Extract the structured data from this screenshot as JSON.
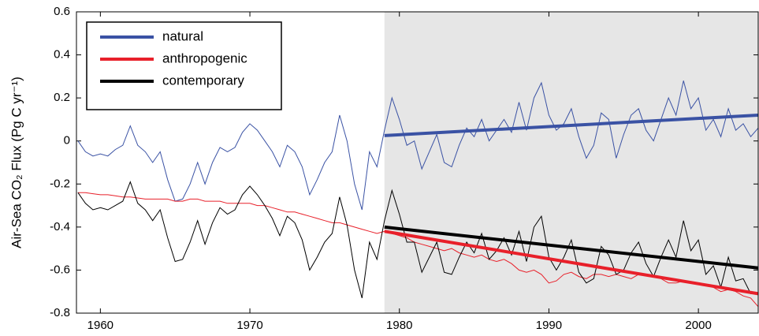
{
  "chart_data": {
    "type": "line",
    "y_label": "Air-Sea CO₂ Flux (Pg C yr⁻¹)",
    "xlim": [
      1958.4,
      2004
    ],
    "ylim": [
      -0.8,
      0.6
    ],
    "xticks": [
      1960,
      1970,
      1980,
      1990,
      2000
    ],
    "yticks": [
      -0.8,
      -0.6,
      -0.4,
      -0.2,
      0,
      0.2,
      0.4,
      0.6
    ],
    "shade_x": [
      1979,
      2004
    ],
    "legend": "upper left",
    "x": [
      1958.5,
      1959,
      1959.5,
      1960,
      1960.5,
      1961,
      1961.5,
      1962,
      1962.5,
      1963,
      1963.5,
      1964,
      1964.5,
      1965,
      1965.5,
      1966,
      1966.5,
      1967,
      1967.5,
      1968,
      1968.5,
      1969,
      1969.5,
      1970,
      1970.5,
      1971,
      1971.5,
      1972,
      1972.5,
      1973,
      1973.5,
      1974,
      1974.5,
      1975,
      1975.5,
      1976,
      1976.5,
      1977,
      1977.5,
      1978,
      1978.5,
      1979,
      1979.5,
      1980,
      1980.5,
      1981,
      1981.5,
      1982,
      1982.5,
      1983,
      1983.5,
      1984,
      1984.5,
      1985,
      1985.5,
      1986,
      1986.5,
      1987,
      1987.5,
      1988,
      1988.5,
      1989,
      1989.5,
      1990,
      1990.5,
      1991,
      1991.5,
      1992,
      1992.5,
      1993,
      1993.5,
      1994,
      1994.5,
      1995,
      1995.5,
      1996,
      1996.5,
      1997,
      1997.5,
      1998,
      1998.5,
      1999,
      1999.5,
      2000,
      2000.5,
      2001,
      2001.5,
      2002,
      2002.5,
      2003,
      2003.5,
      2004
    ],
    "series": [
      {
        "name": "natural",
        "color": "#3a52a4",
        "values": [
          0.0,
          -0.05,
          -0.07,
          -0.06,
          -0.07,
          -0.04,
          -0.02,
          0.07,
          -0.02,
          -0.05,
          -0.1,
          -0.05,
          -0.18,
          -0.28,
          -0.27,
          -0.2,
          -0.1,
          -0.2,
          -0.1,
          -0.03,
          -0.05,
          -0.03,
          0.04,
          0.08,
          0.05,
          0.0,
          -0.05,
          -0.12,
          -0.02,
          -0.05,
          -0.12,
          -0.25,
          -0.18,
          -0.1,
          -0.05,
          0.12,
          0.0,
          -0.2,
          -0.32,
          -0.05,
          -0.12,
          0.05,
          0.2,
          0.1,
          -0.02,
          0.0,
          -0.13,
          -0.05,
          0.03,
          -0.1,
          -0.12,
          -0.02,
          0.06,
          0.02,
          0.1,
          0.0,
          0.05,
          0.1,
          0.04,
          0.18,
          0.05,
          0.2,
          0.27,
          0.12,
          0.05,
          0.08,
          0.15,
          0.02,
          -0.08,
          -0.02,
          0.13,
          0.1,
          -0.08,
          0.03,
          0.12,
          0.15,
          0.05,
          0.0,
          0.1,
          0.2,
          0.12,
          0.28,
          0.15,
          0.2,
          0.05,
          0.1,
          0.02,
          0.15,
          0.05,
          0.08,
          0.02,
          0.06
        ],
        "trend": {
          "x": [
            1979,
            2004
          ],
          "values": [
            0.025,
            0.12
          ]
        }
      },
      {
        "name": "anthropogenic",
        "color": "#e8202a",
        "values": [
          -0.24,
          -0.24,
          -0.245,
          -0.25,
          -0.25,
          -0.255,
          -0.26,
          -0.26,
          -0.265,
          -0.27,
          -0.27,
          -0.27,
          -0.27,
          -0.28,
          -0.28,
          -0.27,
          -0.27,
          -0.28,
          -0.28,
          -0.28,
          -0.29,
          -0.29,
          -0.29,
          -0.29,
          -0.3,
          -0.3,
          -0.31,
          -0.32,
          -0.33,
          -0.33,
          -0.34,
          -0.35,
          -0.36,
          -0.37,
          -0.38,
          -0.38,
          -0.39,
          -0.4,
          -0.41,
          -0.42,
          -0.43,
          -0.42,
          -0.43,
          -0.44,
          -0.45,
          -0.47,
          -0.48,
          -0.49,
          -0.5,
          -0.51,
          -0.5,
          -0.52,
          -0.53,
          -0.54,
          -0.53,
          -0.55,
          -0.56,
          -0.55,
          -0.57,
          -0.6,
          -0.61,
          -0.6,
          -0.62,
          -0.66,
          -0.65,
          -0.62,
          -0.61,
          -0.63,
          -0.64,
          -0.62,
          -0.62,
          -0.63,
          -0.62,
          -0.63,
          -0.64,
          -0.62,
          -0.62,
          -0.63,
          -0.64,
          -0.66,
          -0.66,
          -0.65,
          -0.66,
          -0.66,
          -0.67,
          -0.68,
          -0.7,
          -0.69,
          -0.7,
          -0.72,
          -0.73,
          -0.77
        ],
        "trend": {
          "x": [
            1979,
            2004
          ],
          "values": [
            -0.42,
            -0.71
          ]
        }
      },
      {
        "name": "contemporary",
        "color": "#000000",
        "values": [
          -0.24,
          -0.29,
          -0.32,
          -0.31,
          -0.32,
          -0.3,
          -0.28,
          -0.19,
          -0.29,
          -0.32,
          -0.37,
          -0.32,
          -0.45,
          -0.56,
          -0.55,
          -0.47,
          -0.37,
          -0.48,
          -0.38,
          -0.31,
          -0.34,
          -0.32,
          -0.25,
          -0.21,
          -0.25,
          -0.3,
          -0.36,
          -0.44,
          -0.35,
          -0.38,
          -0.46,
          -0.6,
          -0.54,
          -0.47,
          -0.43,
          -0.26,
          -0.39,
          -0.6,
          -0.73,
          -0.47,
          -0.55,
          -0.37,
          -0.23,
          -0.34,
          -0.47,
          -0.47,
          -0.61,
          -0.54,
          -0.47,
          -0.61,
          -0.62,
          -0.54,
          -0.47,
          -0.52,
          -0.43,
          -0.55,
          -0.51,
          -0.45,
          -0.53,
          -0.42,
          -0.56,
          -0.4,
          -0.35,
          -0.54,
          -0.6,
          -0.54,
          -0.46,
          -0.61,
          -0.66,
          -0.64,
          -0.49,
          -0.53,
          -0.62,
          -0.6,
          -0.52,
          -0.47,
          -0.57,
          -0.63,
          -0.54,
          -0.46,
          -0.54,
          -0.37,
          -0.51,
          -0.46,
          -0.62,
          -0.58,
          -0.68,
          -0.54,
          -0.65,
          -0.64,
          -0.71,
          -0.71
        ],
        "trend": {
          "x": [
            1979,
            2004
          ],
          "values": [
            -0.4,
            -0.59
          ]
        }
      }
    ]
  }
}
